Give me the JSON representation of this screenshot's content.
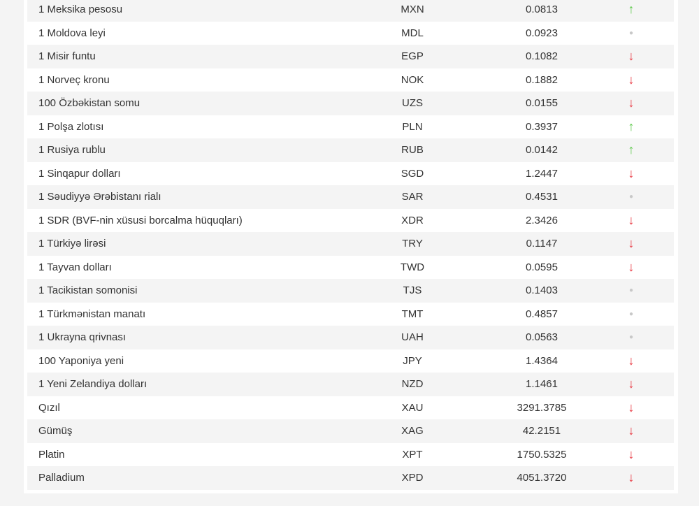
{
  "colors": {
    "up": "#5cc84a",
    "down": "#e8323c",
    "flat": "#c8c8c8"
  },
  "rows": [
    {
      "name": "1 Meksika pesosu",
      "code": "MXN",
      "value": "0.0813",
      "trend": "up"
    },
    {
      "name": "1 Moldova leyi",
      "code": "MDL",
      "value": "0.0923",
      "trend": "flat"
    },
    {
      "name": "1 Misir funtu",
      "code": "EGP",
      "value": "0.1082",
      "trend": "down"
    },
    {
      "name": "1 Norveç kronu",
      "code": "NOK",
      "value": "0.1882",
      "trend": "down"
    },
    {
      "name": "100 Özbəkistan somu",
      "code": "UZS",
      "value": "0.0155",
      "trend": "down"
    },
    {
      "name": "1 Polşa zlotısı",
      "code": "PLN",
      "value": "0.3937",
      "trend": "up"
    },
    {
      "name": "1 Rusiya rublu",
      "code": "RUB",
      "value": "0.0142",
      "trend": "up"
    },
    {
      "name": "1 Sinqapur dolları",
      "code": "SGD",
      "value": "1.2447",
      "trend": "down"
    },
    {
      "name": "1 Səudiyyə Ərəbistanı rialı",
      "code": "SAR",
      "value": "0.4531",
      "trend": "flat"
    },
    {
      "name": "1 SDR (BVF-nin xüsusi borcalma hüquqları)",
      "code": "XDR",
      "value": "2.3426",
      "trend": "down"
    },
    {
      "name": "1 Türkiyə lirəsi",
      "code": "TRY",
      "value": "0.1147",
      "trend": "down"
    },
    {
      "name": "1 Tayvan dolları",
      "code": "TWD",
      "value": "0.0595",
      "trend": "down"
    },
    {
      "name": "1 Tacikistan somonisi",
      "code": "TJS",
      "value": "0.1403",
      "trend": "flat"
    },
    {
      "name": "1 Türkmənistan manatı",
      "code": "TMT",
      "value": "0.4857",
      "trend": "flat"
    },
    {
      "name": "1 Ukrayna qrivnası",
      "code": "UAH",
      "value": "0.0563",
      "trend": "flat"
    },
    {
      "name": "100 Yaponiya yeni",
      "code": "JPY",
      "value": "1.4364",
      "trend": "down"
    },
    {
      "name": "1 Yeni Zelandiya dolları",
      "code": "NZD",
      "value": "1.1461",
      "trend": "down"
    },
    {
      "name": "Qızıl",
      "code": "XAU",
      "value": "3291.3785",
      "trend": "down"
    },
    {
      "name": "Gümüş",
      "code": "XAG",
      "value": "42.2151",
      "trend": "down"
    },
    {
      "name": "Platin",
      "code": "XPT",
      "value": "1750.5325",
      "trend": "down"
    },
    {
      "name": "Palladium",
      "code": "XPD",
      "value": "4051.3720",
      "trend": "down"
    }
  ]
}
